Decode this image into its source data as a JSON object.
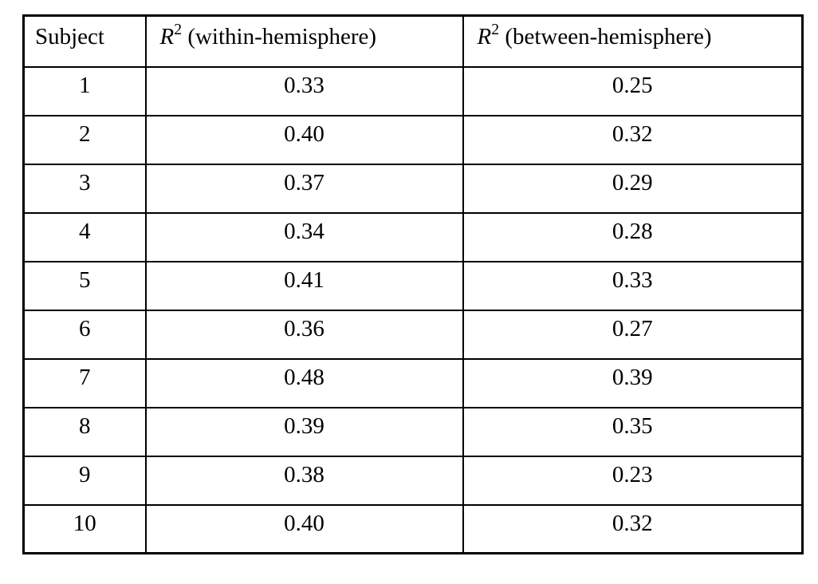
{
  "page": {
    "background": "#ffffff",
    "text_color": "#000000",
    "border_color": "#000000"
  },
  "table": {
    "headers": {
      "subject": {
        "label": "Subject"
      },
      "within": {
        "symbol": "R",
        "sup": "2",
        "rest": " (within-hemisphere)"
      },
      "between": {
        "symbol": "R",
        "sup": "2",
        "rest": " (between-hemisphere)"
      }
    },
    "rows": [
      {
        "subject": "1",
        "within": "0.33",
        "between": "0.25"
      },
      {
        "subject": "2",
        "within": "0.40",
        "between": "0.32"
      },
      {
        "subject": "3",
        "within": "0.37",
        "between": "0.29"
      },
      {
        "subject": "4",
        "within": "0.34",
        "between": "0.28"
      },
      {
        "subject": "5",
        "within": "0.41",
        "between": "0.33"
      },
      {
        "subject": "6",
        "within": "0.36",
        "between": "0.27"
      },
      {
        "subject": "7",
        "within": "0.48",
        "between": "0.39"
      },
      {
        "subject": "8",
        "within": "0.39",
        "between": "0.35"
      },
      {
        "subject": "9",
        "within": "0.38",
        "between": "0.23"
      },
      {
        "subject": "10",
        "within": "0.40",
        "between": "0.32"
      }
    ]
  },
  "chart_data": {
    "type": "table",
    "columns": [
      "Subject",
      "R^2 (within-hemisphere)",
      "R^2 (between-hemisphere)"
    ],
    "rows": [
      [
        1,
        0.33,
        0.25
      ],
      [
        2,
        0.4,
        0.32
      ],
      [
        3,
        0.37,
        0.29
      ],
      [
        4,
        0.34,
        0.28
      ],
      [
        5,
        0.41,
        0.33
      ],
      [
        6,
        0.36,
        0.27
      ],
      [
        7,
        0.48,
        0.39
      ],
      [
        8,
        0.39,
        0.35
      ],
      [
        9,
        0.38,
        0.23
      ],
      [
        10,
        0.4,
        0.32
      ]
    ]
  }
}
